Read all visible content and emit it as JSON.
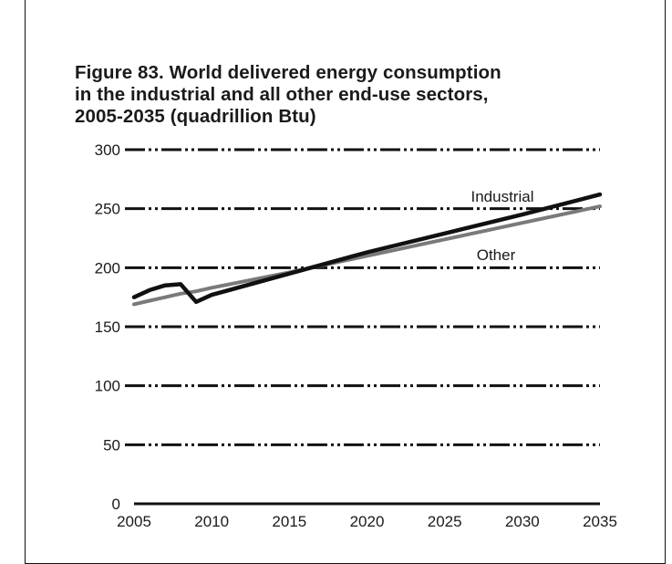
{
  "chart_data": {
    "type": "line",
    "title": "Figure 83. World delivered energy consumption in the industrial and all other end-use sectors, 2005-2035 (quadrillion Btu)",
    "title_lines": [
      "Figure 83. World delivered energy consumption",
      "in the industrial and all other end-use sectors,",
      "2005-2035 (quadrillion Btu)"
    ],
    "xlabel": "",
    "ylabel": "",
    "xlim": [
      2005,
      2035
    ],
    "ylim": [
      0,
      300
    ],
    "x_ticks": [
      2005,
      2010,
      2015,
      2020,
      2025,
      2030,
      2035
    ],
    "y_ticks": [
      0,
      50,
      100,
      150,
      200,
      250,
      300
    ],
    "grid": "horizontal dash-dot",
    "legend": "direct labels on lines",
    "series": [
      {
        "name": "Industrial",
        "color": "#111111",
        "x": [
          2005,
          2006,
          2007,
          2008,
          2009,
          2010,
          2015,
          2020,
          2025,
          2030,
          2035
        ],
        "y": [
          175,
          181,
          185,
          186,
          171,
          177,
          195,
          213,
          229,
          245,
          262
        ]
      },
      {
        "name": "Other",
        "color": "#7a7a7a",
        "x": [
          2005,
          2006,
          2007,
          2008,
          2009,
          2010,
          2015,
          2020,
          2025,
          2030,
          2035
        ],
        "y": [
          169,
          172,
          175,
          178,
          180,
          183,
          196,
          210,
          224,
          238,
          252
        ]
      }
    ]
  }
}
